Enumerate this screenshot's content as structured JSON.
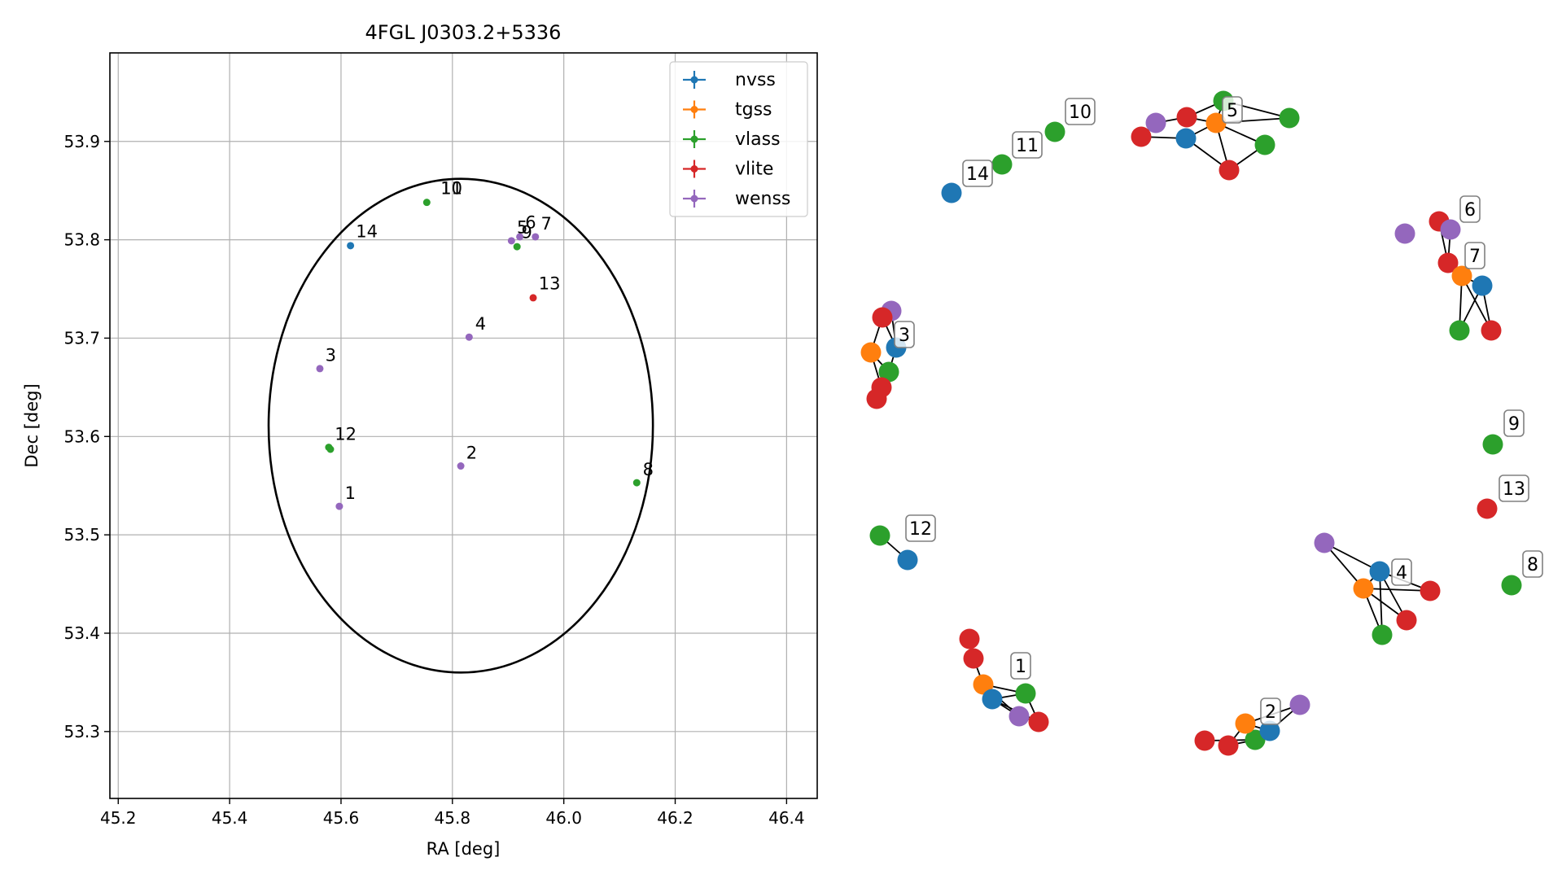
{
  "chart_data": [
    {
      "type": "scatter",
      "title": "4FGL J0303.2+5336",
      "xlabel": "RA [deg]",
      "ylabel": "Dec [deg]",
      "xlim": [
        45.185,
        46.455
      ],
      "ylim": [
        53.232,
        53.99
      ],
      "xticks": [
        "45.2",
        "45.4",
        "45.6",
        "45.8",
        "46.0",
        "46.2",
        "46.4"
      ],
      "yticks": [
        "53.3",
        "53.4",
        "53.5",
        "53.6",
        "53.7",
        "53.8",
        "53.9"
      ],
      "grid": true,
      "legend_position": "top-right",
      "series": [
        {
          "name": "nvss",
          "color": "#1f77b4"
        },
        {
          "name": "tgss",
          "color": "#ff7f0e"
        },
        {
          "name": "vlass",
          "color": "#2ca02c"
        },
        {
          "name": "vlite",
          "color": "#d62728"
        },
        {
          "name": "wenss",
          "color": "#9467bd"
        }
      ],
      "ellipse": {
        "center": [
          45.815,
          53.611
        ],
        "width": 0.69,
        "height": 0.502
      },
      "points": [
        {
          "x": 45.597,
          "y": 53.529,
          "series": "wenss"
        },
        {
          "x": 45.815,
          "y": 53.57,
          "series": "wenss"
        },
        {
          "x": 45.562,
          "y": 53.669,
          "series": "wenss"
        },
        {
          "x": 45.83,
          "y": 53.701,
          "series": "wenss"
        },
        {
          "x": 45.906,
          "y": 53.799,
          "series": "wenss"
        },
        {
          "x": 45.921,
          "y": 53.803,
          "series": "wenss"
        },
        {
          "x": 45.949,
          "y": 53.803,
          "series": "wenss"
        },
        {
          "x": 45.916,
          "y": 53.793,
          "series": "vlass"
        },
        {
          "x": 46.131,
          "y": 53.553,
          "series": "vlass"
        },
        {
          "x": 45.754,
          "y": 53.838,
          "series": "vlass"
        },
        {
          "x": 45.578,
          "y": 53.589,
          "series": "vlass"
        },
        {
          "x": 45.581,
          "y": 53.587,
          "series": "vlass"
        },
        {
          "x": 45.945,
          "y": 53.741,
          "series": "vlite"
        },
        {
          "x": 45.617,
          "y": 53.794,
          "series": "nvss"
        }
      ],
      "point_labels": [
        {
          "text": "1",
          "x": 45.598,
          "y": 53.53
        },
        {
          "text": "2",
          "x": 45.816,
          "y": 53.571
        },
        {
          "text": "3",
          "x": 45.563,
          "y": 53.67
        },
        {
          "text": "4",
          "x": 45.832,
          "y": 53.702
        },
        {
          "text": "5",
          "x": 45.907,
          "y": 53.8
        },
        {
          "text": "6",
          "x": 45.922,
          "y": 53.805
        },
        {
          "text": "7",
          "x": 45.95,
          "y": 53.804
        },
        {
          "text": "8",
          "x": 46.133,
          "y": 53.554
        },
        {
          "text": "9",
          "x": 45.915,
          "y": 53.795
        },
        {
          "text": "10",
          "x": 45.77,
          "y": 53.84
        },
        {
          "text": "11",
          "x": 45.77,
          "y": 53.84
        },
        {
          "text": "12",
          "x": 45.58,
          "y": 53.59
        },
        {
          "text": "13",
          "x": 45.946,
          "y": 53.743
        },
        {
          "text": "14",
          "x": 45.618,
          "y": 53.796
        }
      ]
    },
    {
      "type": "network",
      "groups": [
        {
          "label": "1",
          "nodes": [
            [
              "vlite",
              1191,
              785
            ],
            [
              "vlite",
              1196,
              809
            ],
            [
              "tgss",
              1208,
              841
            ],
            [
              "nvss",
              1219,
              859
            ],
            [
              "vlass",
              1260,
              852
            ],
            [
              "wenss",
              1252,
              880
            ],
            [
              "vlite",
              1276,
              887
            ]
          ],
          "edges": [
            [
              0,
              1
            ],
            [
              1,
              2
            ],
            [
              2,
              3
            ],
            [
              2,
              4
            ],
            [
              2,
              5
            ],
            [
              3,
              4
            ],
            [
              3,
              5
            ],
            [
              3,
              6
            ],
            [
              5,
              6
            ],
            [
              4,
              6
            ]
          ]
        },
        {
          "label": "2",
          "nodes": [
            [
              "vlite",
              1480,
              910
            ],
            [
              "vlite",
              1509,
              916
            ],
            [
              "vlass",
              1542,
              909
            ],
            [
              "tgss",
              1530,
              889
            ],
            [
              "nvss",
              1560,
              898
            ],
            [
              "wenss",
              1597,
              866
            ]
          ],
          "edges": [
            [
              0,
              2
            ],
            [
              1,
              2
            ],
            [
              1,
              3
            ],
            [
              2,
              3
            ],
            [
              2,
              4
            ],
            [
              3,
              4
            ],
            [
              4,
              5
            ],
            [
              3,
              5
            ]
          ]
        },
        {
          "label": "3",
          "nodes": [
            [
              "wenss",
              1095,
              382
            ],
            [
              "vlite",
              1084,
              390
            ],
            [
              "nvss",
              1101,
              427
            ],
            [
              "tgss",
              1070,
              433
            ],
            [
              "vlass",
              1092,
              457
            ],
            [
              "vlite",
              1083,
              476
            ],
            [
              "vlite",
              1077,
              490
            ]
          ],
          "edges": [
            [
              0,
              1
            ],
            [
              0,
              2
            ],
            [
              1,
              3
            ],
            [
              1,
              2
            ],
            [
              2,
              4
            ],
            [
              3,
              4
            ],
            [
              4,
              5
            ],
            [
              5,
              6
            ],
            [
              3,
              5
            ]
          ]
        },
        {
          "label": "4",
          "nodes": [
            [
              "wenss",
              1627,
              667
            ],
            [
              "nvss",
              1695,
              702
            ],
            [
              "tgss",
              1675,
              723
            ],
            [
              "vlite",
              1757,
              726
            ],
            [
              "vlite",
              1728,
              762
            ],
            [
              "vlass",
              1698,
              780
            ]
          ],
          "edges": [
            [
              0,
              2
            ],
            [
              0,
              1
            ],
            [
              1,
              2
            ],
            [
              1,
              3
            ],
            [
              1,
              4
            ],
            [
              1,
              5
            ],
            [
              2,
              3
            ],
            [
              2,
              4
            ],
            [
              2,
              5
            ]
          ]
        },
        {
          "label": "5",
          "nodes": [
            [
              "wenss",
              1420,
              151
            ],
            [
              "vlite",
              1458,
              144
            ],
            [
              "vlass",
              1503,
              124
            ],
            [
              "tgss",
              1494,
              151
            ],
            [
              "vlite",
              1402,
              168
            ],
            [
              "nvss",
              1457,
              170
            ],
            [
              "vlite",
              1510,
              209
            ],
            [
              "vlass",
              1554,
              178
            ],
            [
              "vlass",
              1584,
              145
            ]
          ],
          "edges": [
            [
              0,
              1
            ],
            [
              1,
              3
            ],
            [
              1,
              2
            ],
            [
              2,
              3
            ],
            [
              0,
              4
            ],
            [
              4,
              5
            ],
            [
              5,
              3
            ],
            [
              5,
              6
            ],
            [
              3,
              6
            ],
            [
              3,
              7
            ],
            [
              6,
              7
            ],
            [
              3,
              8
            ],
            [
              2,
              8
            ]
          ]
        },
        {
          "label": "6",
          "nodes": [
            [
              "wenss",
              1726,
              287
            ],
            [
              "vlite",
              1768,
              272
            ],
            [
              "wenss",
              1782,
              282
            ],
            [
              "vlite",
              1779,
              323
            ]
          ],
          "edges": [
            [
              1,
              2
            ],
            [
              1,
              3
            ],
            [
              2,
              3
            ]
          ]
        },
        {
          "label": "7",
          "nodes": [
            [
              "tgss",
              1796,
              339
            ],
            [
              "nvss",
              1821,
              351
            ],
            [
              "vlass",
              1793,
              406
            ],
            [
              "vlite",
              1832,
              406
            ]
          ],
          "edges": [
            [
              0,
              1
            ],
            [
              0,
              2
            ],
            [
              0,
              3
            ],
            [
              1,
              2
            ],
            [
              1,
              3
            ]
          ]
        },
        {
          "label": "8",
          "nodes": [
            [
              "vlass",
              1857,
              719
            ]
          ],
          "edges": []
        },
        {
          "label": "9",
          "nodes": [
            [
              "vlass",
              1834,
              546
            ]
          ],
          "edges": []
        },
        {
          "label": "10",
          "nodes": [
            [
              "vlass",
              1296,
              162
            ]
          ],
          "edges": []
        },
        {
          "label": "11",
          "nodes": [
            [
              "vlass",
              1231,
              202
            ]
          ],
          "edges": []
        },
        {
          "label": "12",
          "nodes": [
            [
              "vlass",
              1081,
              658
            ],
            [
              "nvss",
              1115,
              688
            ]
          ],
          "edges": [
            [
              0,
              1
            ]
          ]
        },
        {
          "label": "13",
          "nodes": [
            [
              "vlite",
              1827,
              625
            ]
          ],
          "edges": []
        },
        {
          "label": "14",
          "nodes": [
            [
              "nvss",
              1169,
              237
            ]
          ],
          "edges": []
        }
      ],
      "label_offsets": {
        "1": [
          1254,
          818
        ],
        "2": [
          1561,
          874
        ],
        "3": [
          1111,
          411
        ],
        "4": [
          1722,
          703
        ],
        "5": [
          1514,
          135
        ],
        "6": [
          1806,
          257
        ],
        "7": [
          1812,
          314
        ],
        "8": [
          1883,
          693
        ],
        "9": [
          1860,
          520
        ],
        "10": [
          1327,
          137
        ],
        "11": [
          1262,
          178
        ],
        "12": [
          1131,
          649
        ],
        "13": [
          1860,
          600
        ],
        "14": [
          1201,
          213
        ]
      }
    }
  ]
}
